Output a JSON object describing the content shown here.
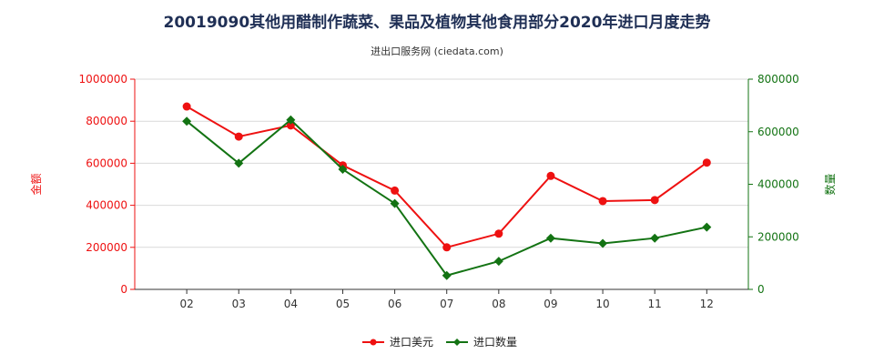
{
  "chart_data": {
    "type": "line",
    "title": "20019090其他用醋制作蔬菜、果品及植物其他食用部分2020年进口月度走势",
    "subtitle": "进出口服务网 (ciedata.com)",
    "categories": [
      "02",
      "03",
      "04",
      "05",
      "06",
      "07",
      "08",
      "09",
      "10",
      "11",
      "12"
    ],
    "y_left": {
      "label": "金额",
      "range": [
        0,
        1000000
      ],
      "ticks": [
        "0",
        "200000",
        "400000",
        "600000",
        "800000",
        "1000000"
      ],
      "tick_values": [
        0,
        200000,
        400000,
        600000,
        800000,
        1000000
      ]
    },
    "y_right": {
      "label": "数量",
      "range": [
        0,
        800000
      ],
      "ticks": [
        "0",
        "200000",
        "400000",
        "600000",
        "800000"
      ],
      "tick_values": [
        0,
        200000,
        400000,
        600000,
        800000
      ]
    },
    "series": [
      {
        "name": "进口美元",
        "axis": "left",
        "color": "#ee1111",
        "values": [
          870000,
          727000,
          780000,
          590000,
          470000,
          200000,
          265000,
          540000,
          420000,
          425000,
          603000
        ]
      },
      {
        "name": "进口数量",
        "axis": "right",
        "color": "#137313",
        "values": [
          640000,
          480000,
          645000,
          457000,
          327000,
          53000,
          107000,
          195000,
          175000,
          195000,
          237000
        ]
      }
    ],
    "grid": true,
    "legend": "bottom-center"
  },
  "colors": {
    "left_axis": "#ee1111",
    "right_axis": "#137313",
    "grid": "#d9d9d9",
    "title": "#1f2f55"
  }
}
